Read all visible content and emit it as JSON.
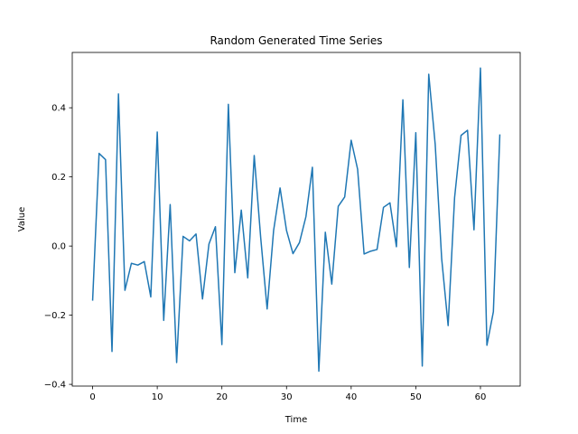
{
  "chart_data": {
    "type": "line",
    "title": "Random Generated Time Series",
    "xlabel": "Time",
    "ylabel": "Value",
    "xlim": [
      -3.15,
      66.15
    ],
    "ylim": [
      -0.405,
      0.56
    ],
    "xticks": [
      0,
      10,
      20,
      30,
      40,
      50,
      60
    ],
    "yticks": [
      -0.4,
      -0.2,
      0.0,
      0.2,
      0.4
    ],
    "ytick_labels": [
      "−0.4",
      "−0.2",
      "0.0",
      "0.2",
      "0.4"
    ],
    "grid": false,
    "series": [
      {
        "color": "#1f77b4",
        "x": [
          0,
          1,
          2,
          3,
          4,
          5,
          6,
          7,
          8,
          9,
          10,
          11,
          12,
          13,
          14,
          15,
          16,
          17,
          18,
          19,
          20,
          21,
          22,
          23,
          24,
          25,
          26,
          27,
          28,
          29,
          30,
          31,
          32,
          33,
          34,
          35,
          36,
          37,
          38,
          39,
          40,
          41,
          42,
          43,
          44,
          45,
          46,
          47,
          48,
          49,
          50,
          51,
          52,
          53,
          54,
          55,
          56,
          57,
          58,
          59,
          60,
          61,
          62,
          63
        ],
        "values": [
          -0.158,
          0.268,
          0.25,
          -0.305,
          0.44,
          -0.128,
          -0.05,
          -0.055,
          -0.045,
          -0.147,
          0.33,
          -0.215,
          0.12,
          -0.337,
          0.028,
          0.015,
          0.035,
          -0.153,
          0.006,
          0.056,
          -0.285,
          0.41,
          -0.077,
          0.104,
          -0.092,
          0.262,
          0.025,
          -0.182,
          0.045,
          0.168,
          0.045,
          -0.022,
          0.01,
          0.085,
          0.228,
          -0.362,
          0.04,
          -0.11,
          0.115,
          0.142,
          0.306,
          0.222,
          -0.023,
          -0.015,
          -0.01,
          0.112,
          0.125,
          -0.002,
          0.423,
          -0.062,
          0.328,
          -0.347,
          0.497,
          0.294,
          -0.036,
          -0.23,
          0.14,
          0.32,
          0.335,
          0.047,
          0.515,
          -0.287,
          -0.19,
          0.323
        ]
      }
    ]
  }
}
